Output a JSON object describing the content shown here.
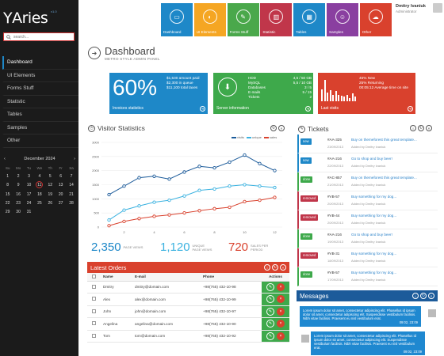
{
  "app": {
    "logo": "ΥAries",
    "version": "v1.0"
  },
  "search": {
    "placeholder": "search..."
  },
  "sidebar": {
    "items": [
      {
        "label": "Dashboard"
      },
      {
        "label": "UI Elements"
      },
      {
        "label": "Forms Stuff"
      },
      {
        "label": "Statistic"
      },
      {
        "label": "Tables"
      },
      {
        "label": "Samples"
      },
      {
        "label": "Other"
      }
    ]
  },
  "calendar": {
    "month": "December 2024",
    "weekdays": [
      "Su",
      "Mo",
      "Tu",
      "We",
      "Th",
      "Fr",
      "Sa"
    ],
    "days": [
      "1",
      "2",
      "3",
      "4",
      "5",
      "6",
      "7",
      "8",
      "9",
      "10",
      "11",
      "12",
      "13",
      "14",
      "15",
      "16",
      "17",
      "18",
      "19",
      "20",
      "21",
      "22",
      "23",
      "24",
      "25",
      "26",
      "27",
      "28",
      "29",
      "30",
      "31"
    ],
    "today": "11"
  },
  "tiles": [
    {
      "label": "Dashboard",
      "color": "#1e88c8",
      "icon": "monitor-icon"
    },
    {
      "label": "UI Elements",
      "color": "#f5a623",
      "icon": "palette-icon"
    },
    {
      "label": "Forms Stuff",
      "color": "#4aa84b",
      "icon": "pencil-icon"
    },
    {
      "label": "Statistic",
      "color": "#c0364a",
      "icon": "bar-chart-icon"
    },
    {
      "label": "Tables",
      "color": "#1e88c8",
      "icon": "table-icon"
    },
    {
      "label": "Samples",
      "color": "#8a3fa0",
      "icon": "user-icon"
    },
    {
      "label": "Other",
      "color": "#d9412d",
      "icon": "cloud-icon"
    }
  ],
  "user": {
    "name": "Dmitry Ivaniuk",
    "role": "Administrator"
  },
  "page": {
    "title": "Dashboard",
    "subtitle": "METRO STYLE ADMIN PANEL"
  },
  "stats": {
    "invoices": {
      "value": "60%",
      "lines": [
        "$1,530 amount paid",
        "$2,300 in queue",
        "$11,100 total taxes"
      ],
      "footer": "Invoices statistics",
      "color": "#1e88c8"
    },
    "server": {
      "rows": [
        {
          "k": "HDD",
          "v": "4,5 / 50 GB"
        },
        {
          "k": "MySQL",
          "v": "5,5 / 10 GB"
        },
        {
          "k": "Databases",
          "v": "3 / 5"
        },
        {
          "k": "E-mails",
          "v": "5 / 15"
        },
        {
          "k": "Tickets",
          "v": "2"
        }
      ],
      "footer": "Server information",
      "color": "#3ea94b"
    },
    "visits": {
      "lines": [
        "45% New",
        "25% Returning",
        "00:05:12 Average time on site"
      ],
      "footer": "Last visits",
      "color": "#d9412d",
      "bars": [
        0.55,
        0.95,
        0.4,
        0.5,
        0.3,
        0.45,
        0.3,
        0.25,
        0.2,
        0.3,
        0.15,
        0.35,
        0.2
      ]
    }
  },
  "visitor": {
    "title": "Visitor Statistics",
    "legend": [
      "visits",
      "unique",
      "sales"
    ]
  },
  "chart_data": {
    "type": "line",
    "x": [
      1,
      2,
      3,
      4,
      5,
      6,
      7,
      8,
      9,
      10,
      11,
      12
    ],
    "xticks": [
      2,
      4,
      6,
      8,
      10,
      12
    ],
    "ylim": [
      0,
      3000
    ],
    "yticks": [
      0,
      500,
      1000,
      1500,
      2000,
      2500,
      3000
    ],
    "series": [
      {
        "name": "visits",
        "color": "#1c5b9a",
        "values": [
          1150,
          1450,
          1750,
          1800,
          1700,
          1950,
          2150,
          2100,
          2300,
          2550,
          2250,
          2000
        ]
      },
      {
        "name": "unique",
        "color": "#3bb2e0",
        "values": [
          250,
          600,
          750,
          880,
          950,
          1100,
          1300,
          1350,
          1450,
          1500,
          1450,
          1400
        ]
      },
      {
        "name": "sales",
        "color": "#d9412d",
        "values": [
          50,
          200,
          300,
          380,
          430,
          500,
          580,
          650,
          700,
          900,
          950,
          1050
        ]
      }
    ]
  },
  "totals": [
    {
      "value": "2,350",
      "label": "PAGE VIEWS",
      "color": "#1e88c8"
    },
    {
      "value": "1,120",
      "label": "UNIQUE PAGE VIEWS",
      "color": "#3bb2e0"
    },
    {
      "value": "720",
      "label": "SALES PER PERIOD",
      "color": "#d9412d"
    }
  ],
  "orders": {
    "title": "Latest Orders",
    "cols": [
      "Name",
      "E-mail",
      "Phone",
      "Actions"
    ],
    "rows": [
      {
        "name": "Dmitry",
        "email": "dmitry@domain.com",
        "phone": "+98(765) 432-10-98"
      },
      {
        "name": "Alex",
        "email": "alex@domain.com",
        "phone": "+98(765) 432-10-99"
      },
      {
        "name": "John",
        "email": "john@domain.com",
        "phone": "+98(765) 432-10-97"
      },
      {
        "name": "Angelina",
        "email": "angelina@domain.com",
        "phone": "+98(765) 432-10-90"
      },
      {
        "name": "Tom",
        "email": "tom@domain.com",
        "phone": "+98(765) 432-10-92"
      }
    ]
  },
  "tickets": {
    "title": "Tickets",
    "rows": [
      {
        "tag": "new",
        "color": "#1e88c8",
        "id": "#AA-325",
        "date": "23/09/2013",
        "text": "Buy on themeforest this great template...",
        "by": "Added by Dmitry Ivaniuk"
      },
      {
        "tag": "new",
        "color": "#1e88c8",
        "id": "#AA-216",
        "date": "22/09/2013",
        "text": "Go to shop and buy beer!",
        "by": "Added by Dmitry Ivaniuk"
      },
      {
        "tag": "done",
        "color": "#3ea94b",
        "id": "#AC-857",
        "date": "21/09/2013",
        "text": "Buy on themeforest this great template...",
        "by": "Added by Dmitry Ivaniuk"
      },
      {
        "tag": "removed",
        "color": "#c0364a",
        "id": "#VB-57",
        "date": "20/09/2013",
        "text": "Buy something for my dog...",
        "by": "Added by Dmitry Ivaniuk"
      },
      {
        "tag": "removed",
        "color": "#c0364a",
        "id": "#VB-44",
        "date": "20/09/2013",
        "text": "Buy something for my dog...",
        "by": "Added by Dmitry Ivaniuk"
      },
      {
        "tag": "done",
        "color": "#3ea94b",
        "id": "#AA-216",
        "date": "19/09/2013",
        "text": "Go to shop and buy beer!",
        "by": "Added by Dmitry Ivaniuk"
      },
      {
        "tag": "removed",
        "color": "#c0364a",
        "id": "#VB-31",
        "date": "18/09/2013",
        "text": "Buy something for my dog...",
        "by": "Added by Dmitry Ivaniuk"
      },
      {
        "tag": "done",
        "color": "#3ea94b",
        "id": "#VB-57",
        "date": "17/09/2013",
        "text": "Buy something for my dog...",
        "by": "Added by Dmitry Ivaniuk"
      }
    ]
  },
  "messages": {
    "title": "Messages",
    "items": [
      {
        "text": "Lorem ipsum dolor sit amet, consectetur adipiscing elit. Phasellus id ipsum dolor sit amet, consectetur adipiscing elit. Suspendisse vestibulum facilisis. Nibh vitae facilisis. Praesent eu nisl vestibulum erat.",
        "time": "09:02, 23:09"
      },
      {
        "text": "Lorem ipsum dolor sit amet, consectetur adipiscing elit. Phasellus id ipsum dolor sit amet, consectetur adipiscing elit. Suspendisse vestibulum facilisis. Nibh vitae facilisis. Praesent eu nisl vestibulum erat.",
        "time": "09:02, 23:09"
      }
    ]
  }
}
